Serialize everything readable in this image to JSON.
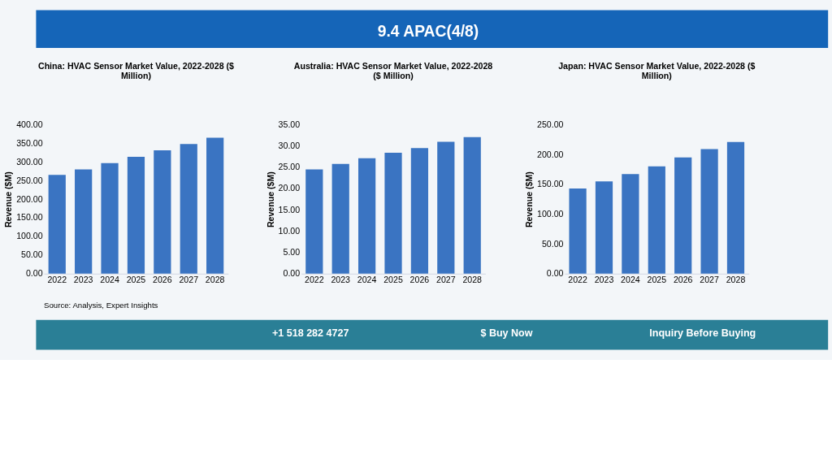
{
  "chart_data": [
    {
      "type": "bar",
      "title": "China: HVAC Sensor Market Value, 2022-2028 ($ Million)",
      "ylabel": "Revenue ($M)",
      "categories": [
        "2022",
        "2023",
        "2024",
        "2025",
        "2026",
        "2027",
        "2028"
      ],
      "series": [
        {
          "color": "#3a74c2",
          "values": [
            265,
            280,
            297,
            314,
            331,
            348,
            365
          ]
        }
      ],
      "ylim": [
        0,
        400
      ],
      "yticks": [
        {
          "value": 0,
          "label": "0.00"
        },
        {
          "value": 50,
          "label": "50.00"
        },
        {
          "value": 100,
          "label": "100.00"
        },
        {
          "value": 150,
          "label": "150.00"
        },
        {
          "value": 200,
          "label": "200.00"
        },
        {
          "value": 250,
          "label": "250.00"
        },
        {
          "value": 300,
          "label": "300.00"
        },
        {
          "value": 350,
          "label": "350.00"
        },
        {
          "value": 400,
          "label": "400.00"
        }
      ],
      "grid": false,
      "annotations": [
        "9.4 APAC(4/8)",
        "Source: Analysis, Expert Insights",
        "+1 518 282 4727",
        "$ Buy Now",
        "Inquiry Before Buying"
      ]
    },
    {
      "type": "bar",
      "title": "Australia: HVAC Sensor Market Value, 2022-2028 ($ Million)",
      "ylabel": "Revenue ($M)",
      "categories": [
        "2022",
        "2023",
        "2024",
        "2025",
        "2026",
        "2027",
        "2028"
      ],
      "series": [
        {
          "color": "#3a74c2",
          "values": [
            24.5,
            25.8,
            27.1,
            28.4,
            29.5,
            31.0,
            32.1
          ]
        }
      ],
      "ylim": [
        0,
        35
      ],
      "yticks": [
        {
          "value": 0,
          "label": "0.00"
        },
        {
          "value": 5,
          "label": "5.00"
        },
        {
          "value": 10,
          "label": "10.00"
        },
        {
          "value": 15,
          "label": "15.00"
        },
        {
          "value": 20,
          "label": "20.00"
        },
        {
          "value": 25,
          "label": "25.00"
        },
        {
          "value": 30,
          "label": "30.00"
        },
        {
          "value": 35,
          "label": "35.00"
        }
      ],
      "grid": false
    },
    {
      "type": "bar",
      "title": "Japan: HVAC Sensor Market Value, 2022-2028 ($ Million)",
      "ylabel": "Revenue ($M)",
      "categories": [
        "2022",
        "2023",
        "2024",
        "2025",
        "2026",
        "2027",
        "2028"
      ],
      "series": [
        {
          "color": "#3a74c2",
          "values": [
            143,
            155,
            167,
            180,
            195,
            209,
            221
          ]
        }
      ],
      "ylim": [
        0,
        250
      ],
      "yticks": [
        {
          "value": 0,
          "label": "0.00"
        },
        {
          "value": 50,
          "label": "50.00"
        },
        {
          "value": 100,
          "label": "100.00"
        },
        {
          "value": 150,
          "label": "150.00"
        },
        {
          "value": 200,
          "label": "200.00"
        },
        {
          "value": 250,
          "label": "250.00"
        }
      ],
      "grid": false
    }
  ]
}
